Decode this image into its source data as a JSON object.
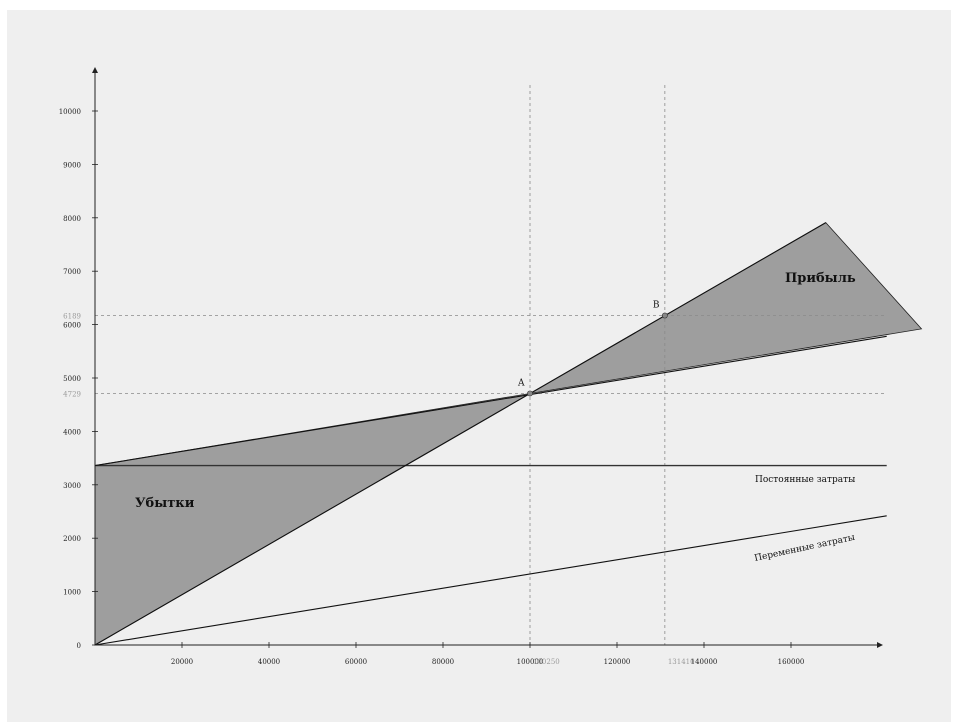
{
  "chart_data": {
    "type": "line",
    "title": "",
    "xlabel": "",
    "ylabel": "",
    "xlim": [
      0,
      180000
    ],
    "ylim": [
      0,
      10500
    ],
    "x_ticks": [
      20000,
      40000,
      60000,
      80000,
      100000,
      120000,
      140000,
      160000
    ],
    "x_tick_labels": [
      "20000",
      "40000",
      "60000",
      "80000",
      "100000",
      "120000",
      "140000",
      "160000"
    ],
    "y_ticks": [
      0,
      1000,
      2000,
      3000,
      4000,
      5000,
      6000,
      7000,
      8000,
      9000,
      10000
    ],
    "y_tick_labels": [
      "0",
      "1000",
      "2000",
      "3000",
      "4000",
      "5000",
      "6000",
      "7000",
      "8000",
      "9000",
      "10000"
    ],
    "grid": false,
    "series": [
      {
        "name": "Постоянные затраты",
        "x": [
          0,
          182000
        ],
        "y": [
          3360,
          3360
        ],
        "color": "#333333"
      },
      {
        "name": "Переменные затраты",
        "x": [
          0,
          182000
        ],
        "y": [
          0,
          2420
        ],
        "color": "#111111"
      },
      {
        "name": "",
        "x": [
          0,
          182000
        ],
        "y": [
          3360,
          5780
        ],
        "color": "#111111"
      },
      {
        "name": "",
        "x": [
          0,
          168000
        ],
        "y": [
          0,
          7910
        ],
        "color": "#111111"
      }
    ],
    "regions": [
      {
        "label": "Убытки",
        "polygon": [
          [
            0,
            3360
          ],
          [
            100000,
            4710
          ],
          [
            0,
            0
          ]
        ],
        "color": "#9e9e9e"
      },
      {
        "label": "Прибыль",
        "polygon": [
          [
            100000,
            4710
          ],
          [
            168000,
            7910
          ],
          [
            190000,
            5920
          ]
        ],
        "color": "#9e9e9e"
      }
    ],
    "points": [
      {
        "label": "A",
        "x": 100000,
        "y": 4710,
        "x_ref_label": "100250",
        "y_ref_label": "4729"
      },
      {
        "label": "B",
        "x": 131000,
        "y": 6170,
        "x_ref_label": "131410",
        "y_ref_label": "6189"
      }
    ],
    "region_labels": {
      "loss": "Убытки",
      "profit": "Прибыль"
    },
    "line_labels": {
      "fixed": "Постоянные затраты",
      "variable": "Переменные затраты"
    }
  }
}
